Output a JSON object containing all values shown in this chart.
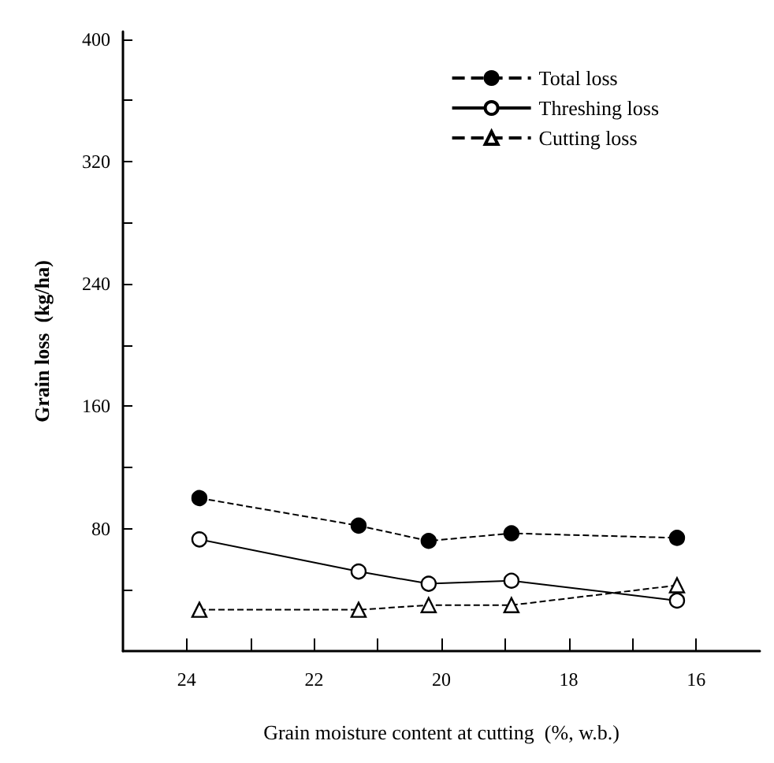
{
  "chart_data": {
    "type": "line",
    "xlabel": "Grain moisture content at cutting  (%, w.b.)",
    "ylabel": "Grain loss  (kg/ha)",
    "xlim": [
      25,
      15
    ],
    "xticks": [
      24,
      {
        "value": 23,
        "label": null
      },
      22,
      {
        "value": 21,
        "label": null
      },
      20,
      {
        "value": 19,
        "label": null
      },
      18,
      {
        "value": 17,
        "label": null
      },
      16
    ],
    "ylim": [
      0,
      405
    ],
    "yticks": [
      {
        "value": 40,
        "label": null
      },
      80,
      {
        "value": 120,
        "label": null
      },
      160,
      {
        "value": 200,
        "label": null
      },
      240,
      {
        "value": 280,
        "label": null
      },
      320,
      {
        "value": 360,
        "label": null
      },
      400
    ],
    "x": [
      23.8,
      21.3,
      20.2,
      18.9,
      16.3
    ],
    "series": [
      {
        "name": "Total loss",
        "color": "#000000",
        "marker": "circle",
        "line_style": "dashed",
        "values": [
          100,
          82,
          72,
          77,
          74
        ]
      },
      {
        "name": "Threshing loss",
        "color": "#000000",
        "marker": "circle",
        "line_style": "solid",
        "values": [
          73,
          52,
          44,
          46,
          33
        ]
      },
      {
        "name": "Cutting loss",
        "color": "#000000",
        "marker": "triangle",
        "line_style": "dashed",
        "values": [
          27,
          27,
          30,
          30,
          43
        ]
      }
    ],
    "legend": "top right",
    "grid": false
  }
}
